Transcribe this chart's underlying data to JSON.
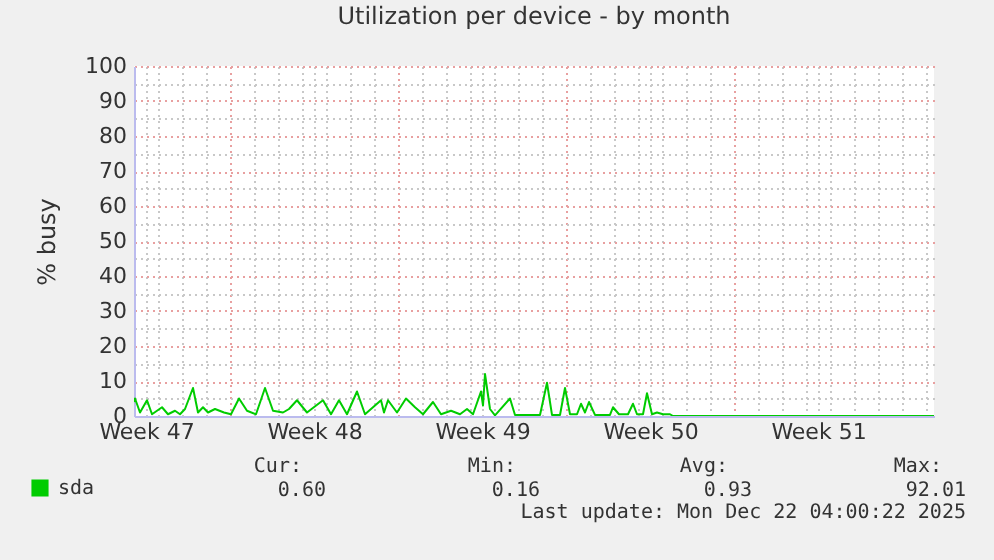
{
  "chart_data": {
    "type": "line",
    "title": "Utilization per device - by month",
    "ylabel": "% busy",
    "x": [
      "2025-11-20T00:00",
      "2025-11-20T01:00",
      "2025-11-20T06:00",
      "2025-11-20T13:00",
      "2025-11-20T18:00",
      "2025-11-21T04:00",
      "2025-11-21T10:00",
      "2025-11-21T17:00",
      "2025-11-21T22:00",
      "2025-11-22T03:00",
      "2025-11-22T11:00",
      "2025-11-22T16:00",
      "2025-11-22T21:00",
      "2025-11-23T02:00",
      "2025-11-23T09:00",
      "2025-11-23T18:00",
      "2025-11-24T01:00",
      "2025-11-24T09:00",
      "2025-11-24T17:00",
      "2025-11-25T02:00",
      "2025-11-25T11:00",
      "2025-11-25T19:00",
      "2025-11-26T05:00",
      "2025-11-26T11:00",
      "2025-11-26T19:00",
      "2025-11-27T05:00",
      "2025-11-27T21:00",
      "2025-11-28T05:00",
      "2025-11-28T13:00",
      "2025-11-28T21:00",
      "2025-11-29T07:00",
      "2025-11-29T15:00",
      "2025-11-30T07:00",
      "2025-11-30T10:00",
      "2025-11-30T14:00",
      "2025-11-30T23:00",
      "2025-12-01T08:00",
      "2025-12-01T17:00",
      "2025-12-02T01:00",
      "2025-12-02T11:00",
      "2025-12-02T19:00",
      "2025-12-03T05:00",
      "2025-12-03T14:00",
      "2025-12-03T21:00",
      "2025-12-04T03:00",
      "2025-12-04T11:00",
      "2025-12-04T13:00",
      "2025-12-04T15:00",
      "2025-12-04T20:00",
      "2025-12-05T01:00",
      "2025-12-05T16:00",
      "2025-12-05T21:00",
      "2025-12-06T22:00",
      "2025-12-07T05:00",
      "2025-12-07T10:00",
      "2025-12-07T18:00",
      "2025-12-07T23:00",
      "2025-12-08T04:00",
      "2025-12-08T11:00",
      "2025-12-08T15:00",
      "2025-12-08T19:00",
      "2025-12-08T23:00",
      "2025-12-09T05:00",
      "2025-12-09T20:00",
      "2025-12-09T23:00",
      "2025-12-10T05:00",
      "2025-12-10T14:00",
      "2025-12-10T19:00",
      "2025-12-10T23:00",
      "2025-12-11T05:00",
      "2025-12-11T09:00",
      "2025-12-11T14:00",
      "2025-12-11T19:00",
      "2025-12-12T01:00",
      "2025-12-12T08:00",
      "2025-12-12T11:00",
      "2025-12-23T08:00"
    ],
    "series": [
      {
        "name": "sda",
        "color": "#00cc00",
        "values": [
          4,
          5,
          1,
          4.5,
          0.5,
          2.5,
          0.5,
          1.5,
          0.5,
          2,
          8,
          1,
          2.5,
          1,
          2,
          1,
          0.5,
          5,
          1.5,
          0.5,
          8,
          1.5,
          1,
          2,
          4.5,
          1,
          4.5,
          0.5,
          4.5,
          0.5,
          7,
          0.5,
          4.5,
          1,
          4.5,
          1,
          5,
          2.5,
          0.5,
          4,
          0.5,
          1.5,
          0.5,
          2,
          0.5,
          7,
          3,
          12,
          2,
          0.2,
          5,
          0.3,
          0.3,
          9.5,
          0.3,
          0.3,
          8,
          0.5,
          0.5,
          3.5,
          1,
          4,
          0.3,
          0.3,
          2.5,
          0.5,
          0.5,
          3.5,
          0.5,
          0.5,
          6.5,
          0.5,
          1,
          0.5,
          0.5,
          0,
          0
        ]
      }
    ],
    "xlim": [
      "2025-11-20T00:00",
      "2025-12-23T08:00"
    ],
    "xticks": [
      {
        "value": "2025-11-20T12:00",
        "label": "Week 47"
      },
      {
        "value": "2025-11-27T12:00",
        "label": "Week 48"
      },
      {
        "value": "2025-12-04T12:00",
        "label": "Week 49"
      },
      {
        "value": "2025-12-11T12:00",
        "label": "Week 50"
      },
      {
        "value": "2025-12-18T12:00",
        "label": "Week 51"
      },
      {
        "value": "2025-11-21",
        "label": null
      },
      {
        "value": "2025-11-22",
        "label": null
      },
      {
        "value": "2025-11-23",
        "label": null
      },
      {
        "value": "2025-11-24",
        "label": null
      },
      {
        "value": "2025-11-25",
        "label": null
      },
      {
        "value": "2025-11-26",
        "label": null
      },
      {
        "value": "2025-11-27",
        "label": null
      },
      {
        "value": "2025-11-28",
        "label": null
      },
      {
        "value": "2025-11-29",
        "label": null
      },
      {
        "value": "2025-11-30",
        "label": null
      },
      {
        "value": "2025-12-01",
        "label": null
      },
      {
        "value": "2025-12-02",
        "label": null
      },
      {
        "value": "2025-12-03",
        "label": null
      },
      {
        "value": "2025-12-04",
        "label": null
      },
      {
        "value": "2025-12-05",
        "label": null
      },
      {
        "value": "2025-12-06",
        "label": null
      },
      {
        "value": "2025-12-07",
        "label": null
      },
      {
        "value": "2025-12-08",
        "label": null
      },
      {
        "value": "2025-12-09",
        "label": null
      },
      {
        "value": "2025-12-10",
        "label": null
      },
      {
        "value": "2025-12-11",
        "label": null
      },
      {
        "value": "2025-12-12",
        "label": null
      },
      {
        "value": "2025-12-13",
        "label": null
      },
      {
        "value": "2025-12-14",
        "label": null
      },
      {
        "value": "2025-12-15",
        "label": null
      },
      {
        "value": "2025-12-16",
        "label": null
      },
      {
        "value": "2025-12-17",
        "label": null
      },
      {
        "value": "2025-12-18",
        "label": null
      },
      {
        "value": "2025-12-19",
        "label": null
      },
      {
        "value": "2025-12-20",
        "label": null
      },
      {
        "value": "2025-12-21",
        "label": null
      },
      {
        "value": "2025-12-22",
        "label": null
      },
      {
        "value": "2025-12-23",
        "label": null
      }
    ],
    "ylim": [
      0,
      100
    ],
    "yticks": [
      0,
      10,
      20,
      30,
      40,
      50,
      60,
      70,
      80,
      90,
      100,
      {
        "value": 5,
        "label": null
      },
      {
        "value": 15,
        "label": null
      },
      {
        "value": 25,
        "label": null
      },
      {
        "value": 35,
        "label": null
      },
      {
        "value": 45,
        "label": null
      },
      {
        "value": 55,
        "label": null
      },
      {
        "value": 65,
        "label": null
      },
      {
        "value": 75,
        "label": null
      },
      {
        "value": 85,
        "label": null
      },
      {
        "value": 95,
        "label": null
      }
    ],
    "grid": true,
    "legend": "bottom left",
    "annotations": [
      "Cur:",
      "Min:",
      "Avg:",
      "Max:",
      "0.60",
      "0.16",
      "0.93",
      "92.01",
      "Last update: Mon Dec 22 04:00:22 2025"
    ]
  }
}
